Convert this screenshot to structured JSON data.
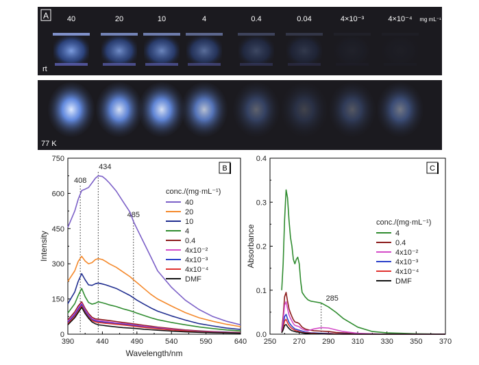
{
  "panelA": {
    "tag": "A",
    "rt_label": "rt",
    "cold_label": "77 K",
    "unit": "mg mL⁻¹",
    "concentrations": [
      "40",
      "20",
      "10",
      "4",
      "0.4",
      "0.04",
      "4×10⁻³",
      "4×10⁻⁴"
    ],
    "rt_intensity": [
      0.85,
      0.75,
      0.7,
      0.55,
      0.3,
      0.2,
      0.05,
      0.03
    ],
    "cold_intensity": [
      1.0,
      0.95,
      0.95,
      0.8,
      0.35,
      0.2,
      0.3,
      0.45
    ],
    "colors": {
      "background": "#1b1a1f",
      "glow": "#4d8cff",
      "vial": "#6a6fd0"
    }
  },
  "chart_data": [
    {
      "type": "line",
      "tag": "B",
      "xlabel": "Wavelength/nm",
      "ylabel": "Intensity",
      "xlim": [
        390,
        640
      ],
      "ylim": [
        0,
        750
      ],
      "xticks": [
        "390",
        "440",
        "490",
        "540",
        "590",
        "640"
      ],
      "yticks": [
        "0",
        "150",
        "300",
        "450",
        "600",
        "750"
      ],
      "peak_labels": [
        {
          "x": 408,
          "text": "408"
        },
        {
          "x": 434,
          "text": "434"
        },
        {
          "x": 485,
          "text": "485"
        }
      ],
      "legend_title": "conc./(mg·mL⁻¹)",
      "legend_position": "right",
      "x": [
        390,
        400,
        405,
        410,
        415,
        420,
        425,
        430,
        434,
        440,
        445,
        450,
        460,
        470,
        480,
        485,
        490,
        500,
        510,
        520,
        540,
        560,
        580,
        600,
        620,
        640
      ],
      "series": [
        {
          "name": "40",
          "color": "#7b5fc7",
          "values": [
            455,
            525,
            575,
            612,
            618,
            625,
            645,
            665,
            675,
            672,
            660,
            645,
            610,
            565,
            520,
            480,
            450,
            390,
            330,
            270,
            200,
            145,
            105,
            75,
            55,
            40
          ]
        },
        {
          "name": "20",
          "color": "#f4882a",
          "values": [
            225,
            270,
            310,
            332,
            312,
            300,
            305,
            318,
            322,
            318,
            310,
            300,
            285,
            265,
            245,
            232,
            220,
            195,
            170,
            150,
            120,
            92,
            70,
            55,
            42,
            32
          ]
        },
        {
          "name": "10",
          "color": "#1f2d8f",
          "values": [
            130,
            180,
            225,
            258,
            232,
            210,
            208,
            215,
            218,
            214,
            210,
            205,
            195,
            180,
            165,
            155,
            145,
            128,
            112,
            98,
            78,
            60,
            45,
            35,
            26,
            20
          ]
        },
        {
          "name": "4",
          "color": "#2e8b2e",
          "values": [
            90,
            130,
            165,
            195,
            160,
            135,
            128,
            132,
            138,
            134,
            130,
            125,
            118,
            108,
            100,
            95,
            90,
            80,
            70,
            62,
            50,
            40,
            31,
            24,
            18,
            14
          ]
        },
        {
          "name": "0.4",
          "color": "#8b1a1a",
          "values": [
            60,
            95,
            120,
            138,
            110,
            88,
            72,
            65,
            64,
            62,
            60,
            58,
            54,
            50,
            46,
            44,
            42,
            38,
            34,
            30,
            24,
            18,
            14,
            11,
            9,
            7
          ]
        },
        {
          "name": "4x10⁻²",
          "color": "#d44ac8",
          "values": [
            55,
            88,
            112,
            132,
            104,
            82,
            66,
            60,
            58,
            56,
            54,
            52,
            48,
            45,
            42,
            40,
            38,
            34,
            30,
            27,
            21,
            16,
            12,
            10,
            8,
            6
          ]
        },
        {
          "name": "4x10⁻³",
          "color": "#2a3fc9",
          "values": [
            50,
            82,
            105,
            126,
            98,
            77,
            62,
            56,
            54,
            52,
            50,
            48,
            45,
            42,
            39,
            37,
            35,
            31,
            28,
            25,
            19,
            15,
            11,
            9,
            7,
            5
          ]
        },
        {
          "name": "4x10⁻⁴",
          "color": "#e0312e",
          "values": [
            45,
            76,
            98,
            120,
            92,
            72,
            58,
            52,
            50,
            48,
            46,
            45,
            42,
            39,
            36,
            34,
            32,
            29,
            26,
            23,
            18,
            14,
            10,
            8,
            6,
            5
          ]
        },
        {
          "name": "DMF",
          "color": "#111111",
          "values": [
            40,
            70,
            92,
            114,
            88,
            68,
            52,
            44,
            40,
            38,
            36,
            34,
            31,
            28,
            26,
            25,
            24,
            21,
            19,
            17,
            13,
            10,
            8,
            6,
            5,
            4
          ]
        }
      ]
    },
    {
      "type": "line",
      "tag": "C",
      "xlabel": "",
      "ylabel": "Absorbance",
      "xlim": [
        250,
        370
      ],
      "ylim": [
        0,
        0.4
      ],
      "xticks": [
        "250",
        "270",
        "290",
        "310",
        "330",
        "350",
        "370"
      ],
      "yticks": [
        "0.0",
        "0.1",
        "0.2",
        "0.3",
        "0.4"
      ],
      "peak_labels": [
        {
          "x": 285,
          "text": "285"
        }
      ],
      "legend_title": "conc./(mg·mL⁻¹)",
      "legend_position": "right",
      "x": [
        258,
        259,
        260,
        261,
        262,
        263,
        264,
        265,
        266,
        267,
        268,
        269,
        270,
        271,
        272,
        274,
        276,
        278,
        280,
        285,
        290,
        295,
        300,
        310,
        320,
        330,
        340,
        350,
        360,
        370
      ],
      "series": [
        {
          "name": "4",
          "color": "#2e8b2e",
          "values": [
            0.1,
            0.16,
            0.26,
            0.328,
            0.31,
            0.26,
            0.22,
            0.2,
            0.17,
            0.16,
            0.17,
            0.175,
            0.16,
            0.12,
            0.095,
            0.085,
            0.078,
            0.075,
            0.074,
            0.071,
            0.062,
            0.05,
            0.036,
            0.016,
            0.006,
            0.003,
            0.002,
            0.001,
            0.0005,
            0.0
          ]
        },
        {
          "name": "0.4",
          "color": "#8b1a1a",
          "values": [
            0.01,
            0.04,
            0.085,
            0.095,
            0.075,
            0.058,
            0.048,
            0.04,
            0.033,
            0.028,
            0.027,
            0.026,
            0.024,
            0.02,
            0.016,
            0.012,
            0.01,
            0.009,
            0.008,
            0.007,
            0.006,
            0.004,
            0.003,
            0.001,
            0.0005,
            0.0,
            0.0,
            0.0,
            0.0,
            0.0
          ]
        },
        {
          "name": "4x10⁻²",
          "color": "#d44ac8",
          "values": [
            0.008,
            0.03,
            0.066,
            0.074,
            0.058,
            0.044,
            0.036,
            0.03,
            0.024,
            0.02,
            0.019,
            0.018,
            0.017,
            0.014,
            0.012,
            0.009,
            0.008,
            0.01,
            0.012,
            0.015,
            0.014,
            0.01,
            0.006,
            0.002,
            0.001,
            0.0,
            0.0,
            0.0,
            0.0,
            0.0
          ]
        },
        {
          "name": "4x10⁻³",
          "color": "#2a3fc9",
          "values": [
            0.005,
            0.018,
            0.04,
            0.045,
            0.035,
            0.027,
            0.022,
            0.018,
            0.015,
            0.012,
            0.011,
            0.01,
            0.009,
            0.008,
            0.007,
            0.005,
            0.004,
            0.003,
            0.003,
            0.002,
            0.002,
            0.001,
            0.001,
            0.0,
            0.0,
            0.0,
            0.0,
            0.0,
            0.0,
            0.0
          ]
        },
        {
          "name": "4x10⁻⁴",
          "color": "#e0312e",
          "values": [
            0.004,
            0.014,
            0.03,
            0.034,
            0.026,
            0.02,
            0.016,
            0.013,
            0.011,
            0.009,
            0.008,
            0.007,
            0.006,
            0.005,
            0.004,
            0.003,
            0.003,
            0.002,
            0.002,
            0.001,
            0.001,
            0.001,
            0.0,
            0.0,
            0.0,
            0.0,
            0.0,
            0.0,
            0.0,
            0.0
          ]
        },
        {
          "name": "DMF",
          "color": "#111111",
          "values": [
            0.003,
            0.01,
            0.02,
            0.022,
            0.017,
            0.013,
            0.01,
            0.008,
            0.007,
            0.006,
            0.005,
            0.005,
            0.004,
            0.004,
            0.003,
            0.002,
            0.002,
            0.001,
            0.001,
            0.001,
            0.0,
            0.0,
            0.0,
            0.0,
            0.0,
            0.0,
            0.0,
            0.0,
            0.0,
            0.0
          ]
        }
      ]
    }
  ]
}
